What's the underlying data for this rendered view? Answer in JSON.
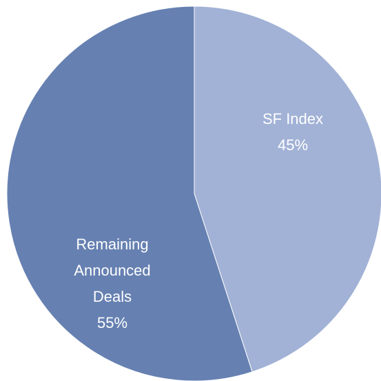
{
  "chart_data": {
    "type": "pie",
    "categories": [
      "SF Index",
      "Remaining Announced Deals"
    ],
    "values": [
      45,
      55
    ],
    "value_labels": [
      "45%",
      "55%"
    ],
    "colors": [
      "#a2b2d6",
      "#6680b1"
    ]
  }
}
